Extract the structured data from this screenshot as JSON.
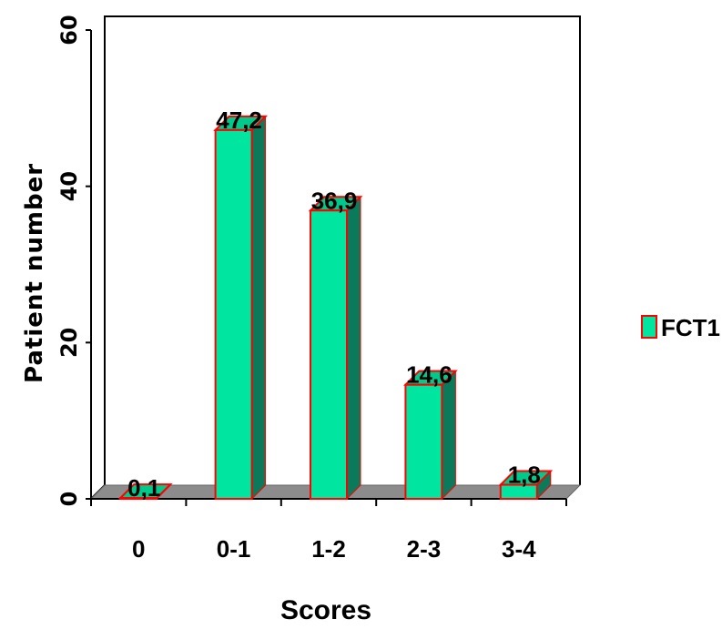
{
  "chart_data": {
    "type": "bar",
    "categories": [
      "0",
      "0-1",
      "1-2",
      "2-3",
      "3-4"
    ],
    "series": [
      {
        "name": "FCT1",
        "values": [
          0.1,
          47.2,
          36.9,
          14.6,
          1.8
        ]
      }
    ],
    "data_labels": [
      "0,1",
      "47,2",
      "36,9",
      "14,6",
      "1,8"
    ],
    "yticks": [
      "0",
      "20",
      "40",
      "60"
    ],
    "ytick_values": [
      0,
      20,
      40,
      60
    ],
    "xlabel": "Scores",
    "ylabel": "Patient number",
    "ylim": [
      0,
      60
    ],
    "legend_position": "right",
    "bar_style": "3d",
    "grid": false,
    "colors": {
      "bar_front": "#00e5a0",
      "bar_side": "#0a7a5a",
      "bar_top": "#00c98c",
      "bar_border": "#ff0000",
      "floor": "#8c8c8c"
    }
  }
}
